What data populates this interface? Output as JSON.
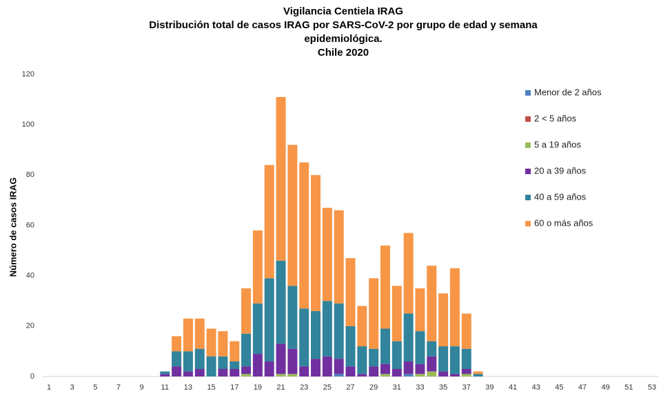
{
  "chart_data": {
    "type": "stacked_bar",
    "title": [
      "Vigilancia Centiela IRAG",
      "Distribución total  de casos IRAG  por SARS-CoV-2 por grupo de edad y semana",
      "epidemiológica.",
      "Chile 2020"
    ],
    "y_label": "Número de casos IRAG",
    "categories": [
      1,
      null,
      3,
      null,
      5,
      null,
      7,
      null,
      9,
      null,
      11,
      null,
      13,
      null,
      15,
      null,
      17,
      null,
      19,
      null,
      21,
      null,
      23,
      null,
      25,
      null,
      27,
      null,
      29,
      null,
      31,
      null,
      33,
      null,
      35,
      null,
      37,
      null,
      39,
      null,
      41,
      null,
      43,
      null,
      45,
      null,
      47,
      null,
      49,
      null,
      51,
      null,
      53
    ],
    "series": [
      {
        "name": "Menor de 2 años",
        "color": "#4f81bd",
        "values": [
          0,
          0,
          0,
          0,
          0,
          0,
          0,
          0,
          0,
          0,
          0,
          0,
          0,
          0,
          0,
          0,
          0,
          0,
          0,
          0,
          0,
          0,
          0,
          0,
          0,
          1,
          0,
          0,
          0,
          0,
          0,
          1,
          0,
          0,
          0,
          0,
          0,
          0,
          0,
          0,
          0,
          0,
          0,
          0,
          0,
          0,
          0,
          0,
          0,
          0,
          0,
          0,
          0
        ]
      },
      {
        "name": "2 < 5 años",
        "color": "#c0504d",
        "values": [
          0,
          0,
          0,
          0,
          0,
          0,
          0,
          0,
          0,
          0,
          0,
          0,
          0,
          0,
          0,
          0,
          0,
          0,
          0,
          0,
          0,
          0,
          0,
          0,
          0,
          0,
          0,
          0,
          0,
          0,
          0,
          0,
          0,
          0,
          0,
          0,
          0,
          0,
          0,
          0,
          0,
          0,
          0,
          0,
          0,
          0,
          0,
          0,
          0,
          0,
          0,
          0,
          0
        ]
      },
      {
        "name": "5 a 19 años",
        "color": "#9bbb59",
        "values": [
          0,
          0,
          0,
          0,
          0,
          0,
          0,
          0,
          0,
          0,
          0,
          0,
          0,
          0,
          0,
          0,
          0,
          1,
          0,
          0,
          1,
          1,
          0,
          0,
          0,
          0,
          0,
          0,
          0,
          1,
          0,
          0,
          1,
          2,
          0,
          0,
          1,
          0,
          0,
          0,
          0,
          0,
          0,
          0,
          0,
          0,
          0,
          0,
          0,
          0,
          0,
          0,
          0
        ]
      },
      {
        "name": "20 a 39 años",
        "color": "#7030a0",
        "values": [
          0,
          0,
          0,
          0,
          0,
          0,
          0,
          0,
          0,
          0,
          1,
          4,
          2,
          3,
          0,
          3,
          3,
          3,
          9,
          6,
          12,
          10,
          4,
          7,
          8,
          6,
          4,
          1,
          4,
          4,
          3,
          5,
          4,
          6,
          2,
          1,
          2,
          0,
          0,
          0,
          0,
          0,
          0,
          0,
          0,
          0,
          0,
          0,
          0,
          0,
          0,
          0,
          0
        ]
      },
      {
        "name": "40 a 59 años",
        "color": "#31849b",
        "values": [
          0,
          0,
          0,
          0,
          0,
          0,
          0,
          0,
          0,
          0,
          1,
          6,
          8,
          8,
          8,
          5,
          3,
          13,
          20,
          33,
          33,
          25,
          23,
          19,
          22,
          22,
          16,
          11,
          7,
          14,
          11,
          19,
          13,
          6,
          10,
          11,
          8,
          1,
          0,
          0,
          0,
          0,
          0,
          0,
          0,
          0,
          0,
          0,
          0,
          0,
          0,
          0,
          0
        ]
      },
      {
        "name": "60 o más años",
        "color": "#f79646",
        "values": [
          0,
          0,
          0,
          0,
          0,
          0,
          0,
          0,
          0,
          0,
          0,
          6,
          13,
          12,
          11,
          10,
          8,
          18,
          29,
          45,
          65,
          56,
          58,
          54,
          37,
          37,
          27,
          16,
          28,
          33,
          22,
          32,
          17,
          30,
          21,
          31,
          14,
          1,
          0,
          0,
          0,
          0,
          0,
          0,
          0,
          0,
          0,
          0,
          0,
          0,
          0,
          0,
          0
        ]
      }
    ],
    "ylim": [
      0,
      120
    ],
    "yticks": [
      0,
      20,
      40,
      60,
      80,
      100,
      120
    ],
    "grid": false,
    "legend": "right"
  }
}
